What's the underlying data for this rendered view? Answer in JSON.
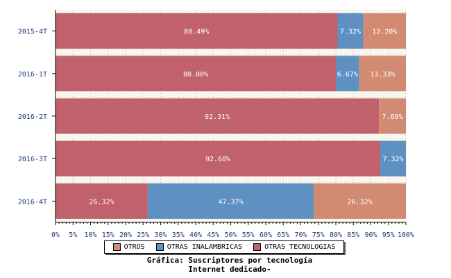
{
  "chart_data": {
    "type": "bar",
    "orientation": "horizontal",
    "stacked": true,
    "categories": [
      "2015-4T",
      "2016-1T",
      "2016-2T",
      "2016-3T",
      "2016-4T"
    ],
    "series": [
      {
        "name": "OTRAS TECNOLOGIAS",
        "color": "#c0616b",
        "values": [
          80.49,
          80.0,
          92.31,
          92.68,
          26.32
        ]
      },
      {
        "name": "OTRAS INALAMBRICAS",
        "color": "#5e91c2",
        "values": [
          7.32,
          6.67,
          0,
          7.32,
          47.37
        ]
      },
      {
        "name": "OTROS",
        "color": "#d28a73",
        "values": [
          12.2,
          13.33,
          7.69,
          0,
          26.32
        ]
      }
    ],
    "data_labels": [
      [
        "80.49%",
        "7.32%",
        "12.20%"
      ],
      [
        "80.00%",
        "6.67%",
        "13.33%"
      ],
      [
        "92.31%",
        "",
        "7.69%"
      ],
      [
        "92.68%",
        "7.32%",
        ""
      ],
      [
        "26.32%",
        "47.37%",
        "26.32%"
      ]
    ],
    "xlim": [
      0,
      100
    ],
    "x_ticks": [
      "0%",
      "5%",
      "10%",
      "15%",
      "20%",
      "25%",
      "30%",
      "35%",
      "40%",
      "45%",
      "50%",
      "55%",
      "60%",
      "65%",
      "70%",
      "75%",
      "80%",
      "85%",
      "90%",
      "95%",
      "100%"
    ],
    "legend_position": "bottom",
    "grid": true
  },
  "legend": {
    "items": [
      {
        "label": "OTROS",
        "color": "#d28a73"
      },
      {
        "label": "OTRAS INALAMBRICAS",
        "color": "#5e91c2"
      },
      {
        "label": "OTRAS TECNOLOGIAS",
        "color": "#c0616b"
      }
    ]
  },
  "caption": {
    "line1": "Gráfica: Suscriptores por tecnología",
    "line2": "Internet dedicado-"
  },
  "colors": {
    "background": "#ffffff",
    "plot_background": "#f8f6ee",
    "bar_label": "#ffffff",
    "axis_text": "#1f3a78"
  }
}
